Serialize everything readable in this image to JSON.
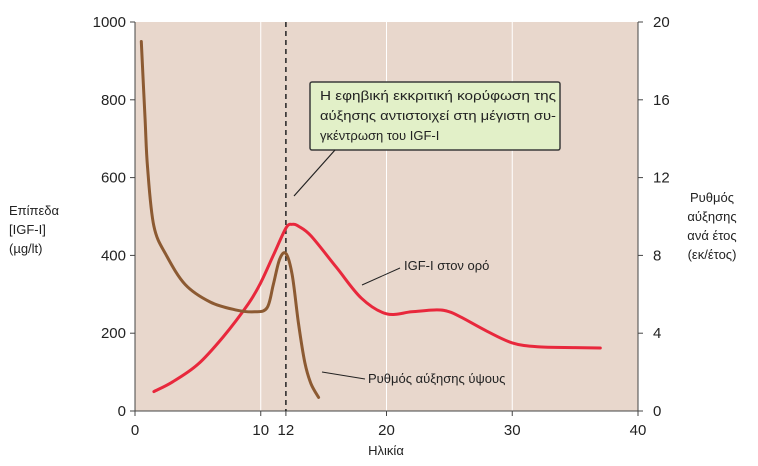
{
  "chart_data": {
    "type": "line",
    "title": "",
    "xlabel": "Ηλικία",
    "ylabel_left": [
      "Επίπεδα",
      "[IGF-I]",
      "(µg/lt)"
    ],
    "ylabel_right": [
      "Ρυθμός",
      "αύξησης",
      "ανά έτος",
      "(εκ/έτος)"
    ],
    "xlim": [
      0,
      40
    ],
    "ylim_left": [
      0,
      1000
    ],
    "ylim_right": [
      0,
      20
    ],
    "x_ticks": [
      0,
      10,
      12,
      20,
      30,
      40
    ],
    "y_ticks_left": [
      0,
      200,
      400,
      600,
      800,
      1000
    ],
    "y_ticks_right": [
      0,
      4,
      8,
      12,
      16,
      20
    ],
    "grid": "vertical",
    "vline_x": 12,
    "callout": {
      "lines": [
        "Η εφηβική εκκριτική κορύφωση της",
        "αύξησης αντιστοιχεί στη μέγιστη συ-",
        "γκέντρωση του IGF-I"
      ],
      "fill": "#e2f0c8",
      "border": "#3a3a3a"
    },
    "series": [
      {
        "name": "IGF-I στον ορό",
        "axis": "left",
        "color": "#e8283c",
        "points": [
          [
            1.5,
            50
          ],
          [
            3,
            75
          ],
          [
            5,
            120
          ],
          [
            7,
            190
          ],
          [
            9,
            275
          ],
          [
            10,
            330
          ],
          [
            11,
            400
          ],
          [
            12,
            470
          ],
          [
            12.5,
            480
          ],
          [
            13,
            475
          ],
          [
            14,
            450
          ],
          [
            16,
            370
          ],
          [
            18,
            290
          ],
          [
            20,
            250
          ],
          [
            22,
            255
          ],
          [
            24,
            260
          ],
          [
            25,
            255
          ],
          [
            26,
            240
          ],
          [
            28,
            205
          ],
          [
            30,
            175
          ],
          [
            32,
            165
          ],
          [
            35,
            163
          ],
          [
            37,
            162
          ]
        ]
      },
      {
        "name": "Ρυθμός αύξησης ύψους",
        "axis": "right",
        "color": "#8c5a32",
        "points": [
          [
            0.5,
            19
          ],
          [
            0.8,
            15
          ],
          [
            1,
            12.5
          ],
          [
            1.5,
            9.5
          ],
          [
            2.5,
            8
          ],
          [
            4,
            6.5
          ],
          [
            6,
            5.6
          ],
          [
            8,
            5.2
          ],
          [
            9.5,
            5.1
          ],
          [
            10.5,
            5.3
          ],
          [
            11,
            6.5
          ],
          [
            11.5,
            7.8
          ],
          [
            12,
            8.1
          ],
          [
            12.5,
            7
          ],
          [
            13,
            4.5
          ],
          [
            13.5,
            2.5
          ],
          [
            14,
            1.4
          ],
          [
            14.6,
            0.7
          ]
        ]
      }
    ]
  }
}
